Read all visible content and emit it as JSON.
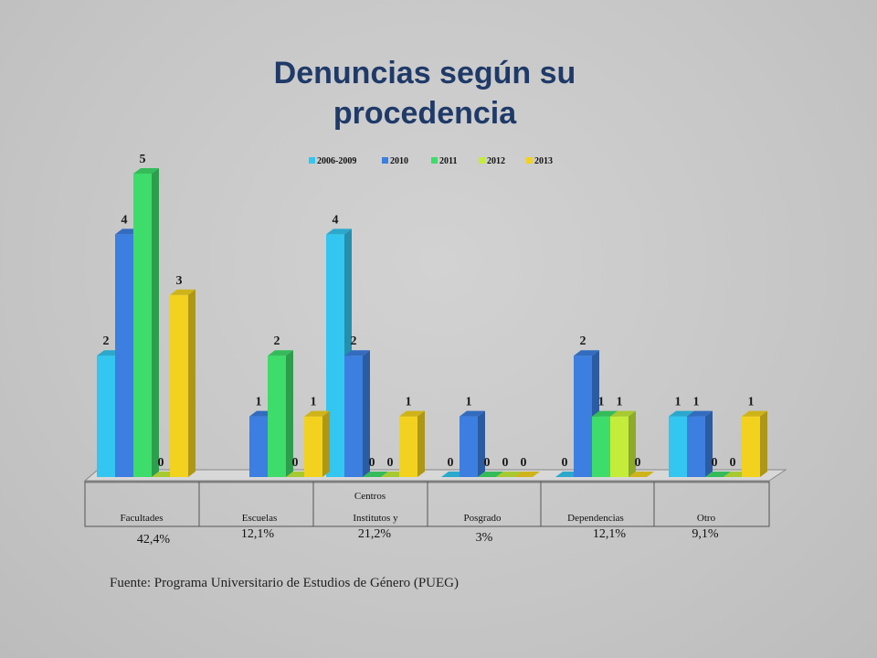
{
  "title_lines": [
    "Denuncias según su",
    "procedencia"
  ],
  "source": "Fuente: Programa Universitario de Estudios de Género (PUEG)",
  "chart_data": {
    "type": "bar",
    "title": "Denuncias según su procedencia",
    "xlabel": "Centros",
    "categories": [
      "Facultades",
      "Escuelas",
      "Institutos y",
      "Posgrado",
      "Dependencias",
      "Otro"
    ],
    "category_percentages": [
      "42,4%",
      "12,1%",
      "21,2%",
      "3%",
      "12,1%",
      "9,1%"
    ],
    "series": [
      {
        "name": "2006-2009",
        "color": "#33c6f0",
        "values": [
          2,
          null,
          4,
          0,
          0,
          1
        ]
      },
      {
        "name": "2010",
        "color": "#3c7fe0",
        "values": [
          4,
          1,
          2,
          1,
          2,
          1
        ]
      },
      {
        "name": "2011",
        "color": "#3edc6a",
        "values": [
          5,
          2,
          0,
          0,
          1,
          0
        ]
      },
      {
        "name": "2012",
        "color": "#c4ec3a",
        "values": [
          0,
          0,
          0,
          0,
          1,
          0
        ]
      },
      {
        "name": "2013",
        "color": "#f2d21e",
        "values": [
          3,
          1,
          1,
          0,
          0,
          1
        ]
      }
    ],
    "ylim": [
      0,
      5
    ],
    "legend_position": "top",
    "grid": false
  }
}
